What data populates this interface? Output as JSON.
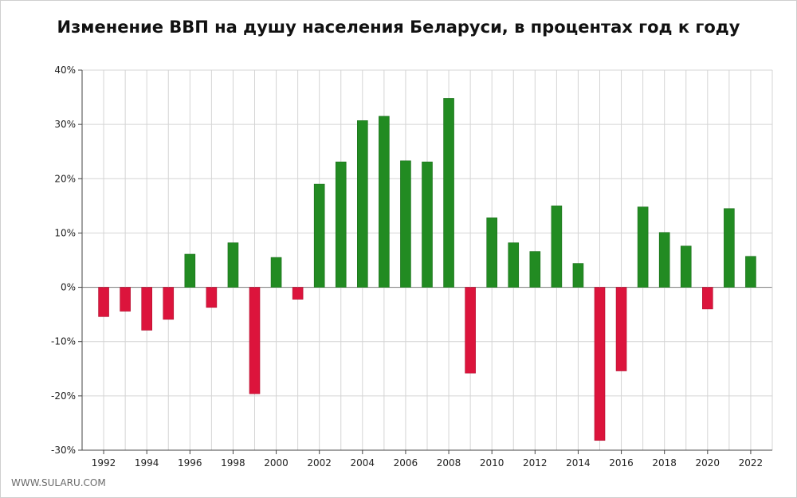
{
  "chart_data": {
    "type": "bar",
    "title": "Изменение ВВП на душу населения Беларуси, в процентах год к году",
    "xlabel": "",
    "ylabel": "",
    "categories": [
      1992,
      1993,
      1994,
      1995,
      1996,
      1997,
      1998,
      1999,
      2000,
      2001,
      2002,
      2003,
      2004,
      2005,
      2006,
      2007,
      2008,
      2009,
      2010,
      2011,
      2012,
      2013,
      2014,
      2015,
      2016,
      2017,
      2018,
      2019,
      2020,
      2021,
      2022
    ],
    "values": [
      -5.4,
      -4.4,
      -7.9,
      -5.9,
      6.1,
      -3.7,
      8.2,
      -19.6,
      5.5,
      -2.2,
      19.0,
      23.1,
      30.7,
      31.5,
      23.3,
      23.1,
      34.8,
      -15.8,
      12.8,
      8.2,
      6.6,
      15.0,
      4.4,
      -28.2,
      -15.4,
      14.8,
      10.1,
      7.6,
      -4.0,
      14.5,
      5.7
    ],
    "ylim": [
      -30,
      40
    ],
    "yticks": [
      -30,
      -20,
      -10,
      0,
      10,
      20,
      30,
      40
    ],
    "ytick_labels": [
      "-30%",
      "-20%",
      "-10%",
      "0%",
      "10%",
      "20%",
      "30%",
      "40%"
    ],
    "xtick_labels": [
      "1992",
      "1994",
      "1996",
      "1998",
      "2000",
      "2002",
      "2004",
      "2006",
      "2008",
      "2010",
      "2012",
      "2014",
      "2016",
      "2018",
      "2020",
      "2022"
    ],
    "grid": true,
    "colors": {
      "positive": "#228B22",
      "negative": "#DC143C"
    }
  },
  "footer": "WWW.SULARU.COM"
}
